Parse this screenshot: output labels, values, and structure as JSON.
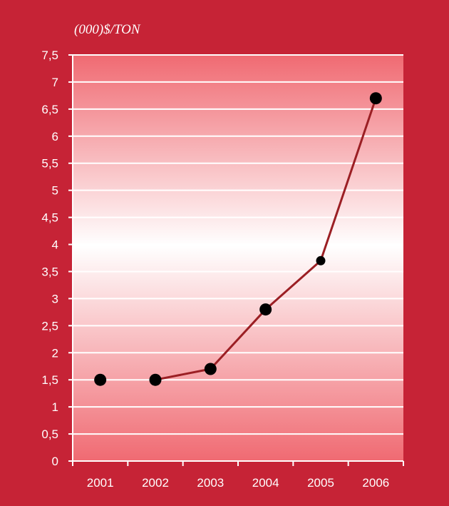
{
  "chart_data": {
    "type": "line",
    "title": "",
    "unit_label": "(000)$/TON",
    "xlabel": "",
    "ylabel": "",
    "categories": [
      "2001",
      "2002",
      "2003",
      "2004",
      "2005",
      "2006"
    ],
    "series": [
      {
        "values": [
          1.5,
          1.5,
          1.7,
          2.8,
          3.7,
          6.7
        ]
      }
    ],
    "ylim": [
      0,
      7.5
    ],
    "yticks": [
      "0",
      "0,5",
      "1",
      "1,5",
      "2",
      "2,5",
      "3",
      "3,5",
      "4",
      "4,5",
      "5",
      "5,5",
      "6",
      "6,5",
      "7",
      "7,5"
    ],
    "grid": true,
    "legend": "none",
    "colors": {
      "background": "#c62336",
      "plot_edge": "#f06a72",
      "plot_center": "#ffffff",
      "line": "#9b1f24",
      "marker": "#000000",
      "grid": "#ffffff",
      "text": "#ffffff"
    }
  }
}
